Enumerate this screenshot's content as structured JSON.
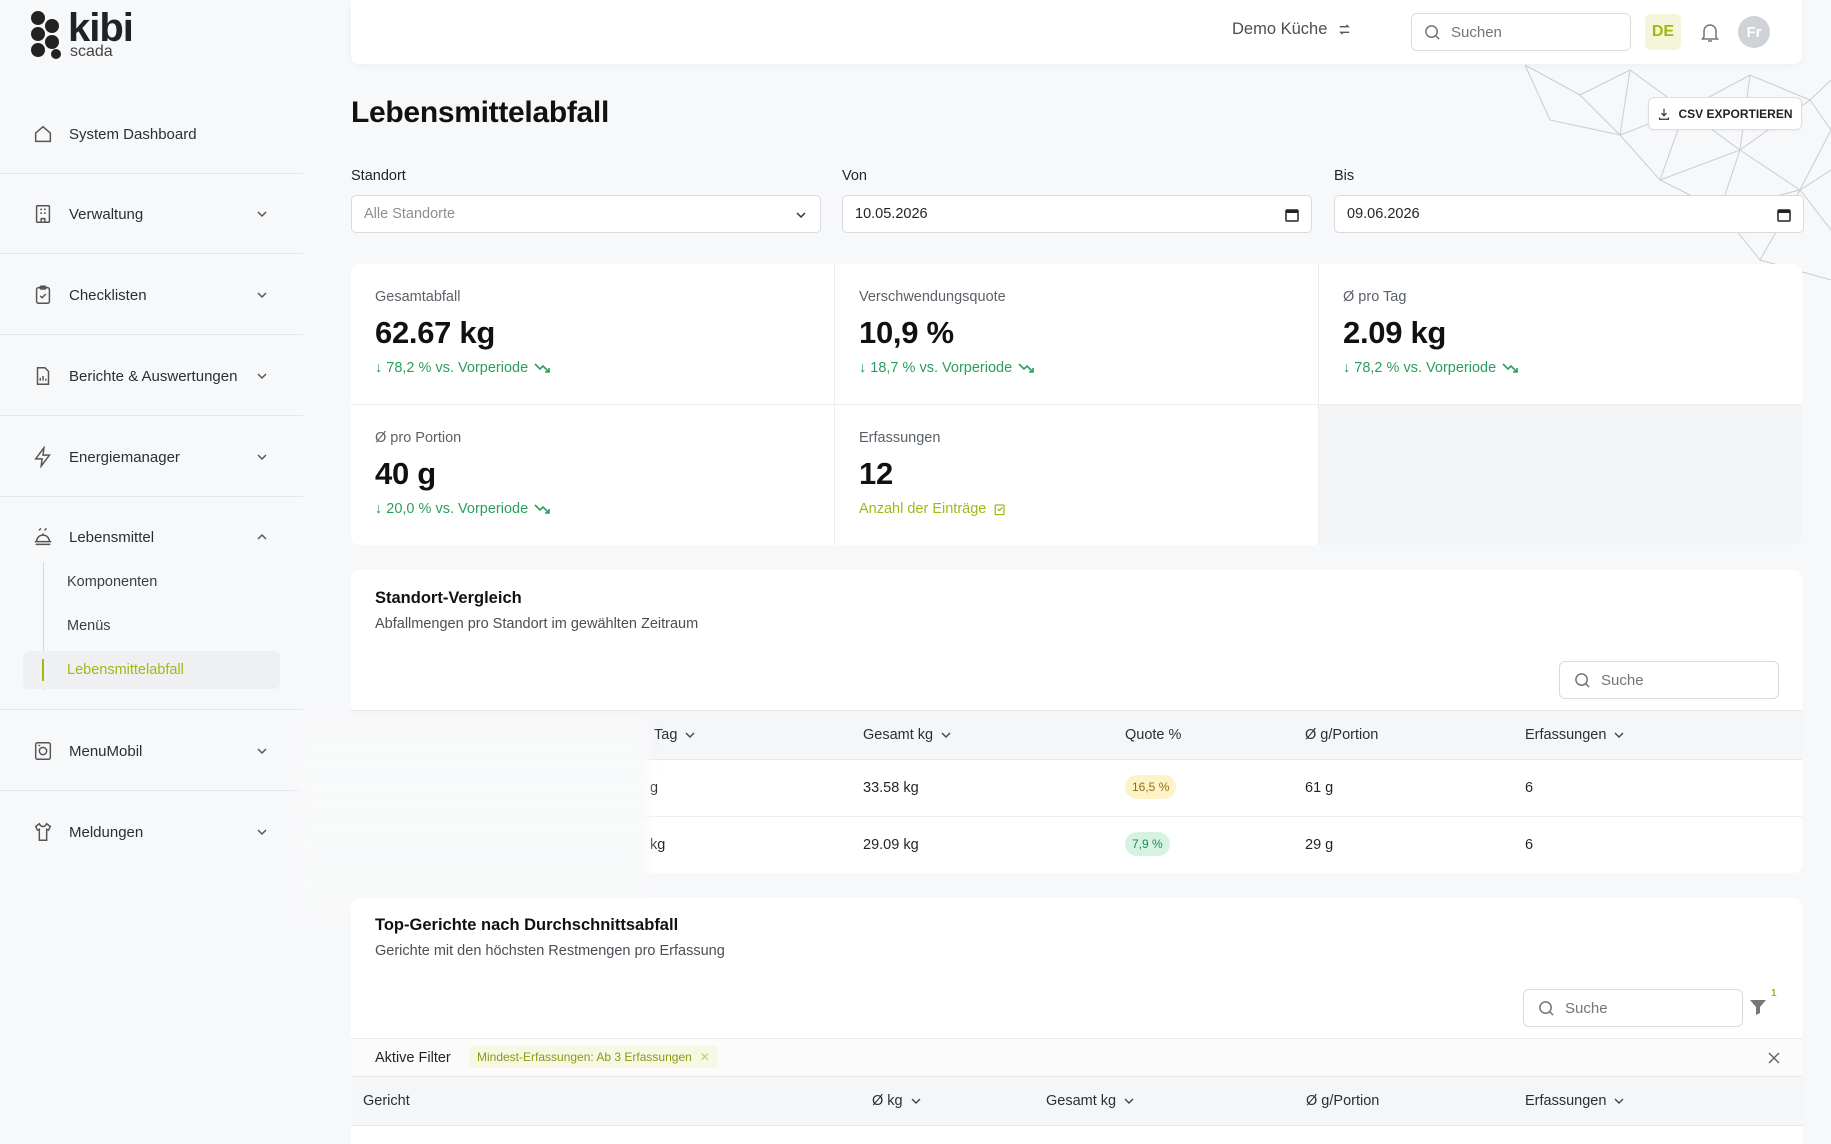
{
  "brand": {
    "name": "kibi",
    "sub": "scada",
    "accent": "#a4b814"
  },
  "sidebar": {
    "items": [
      {
        "label": "System Dashboard",
        "icon": "home-icon"
      },
      {
        "label": "Verwaltung",
        "icon": "building-icon"
      },
      {
        "label": "Checklisten",
        "icon": "clipboard-check-icon"
      },
      {
        "label": "Berichte & Auswertungen",
        "icon": "report-icon"
      },
      {
        "label": "Energiemanager",
        "icon": "bolt-icon"
      },
      {
        "label": "Lebensmittel",
        "icon": "food-tray-icon",
        "expanded": true
      },
      {
        "label": "MenuMobil",
        "icon": "mobile-cart-icon"
      },
      {
        "label": "Meldungen",
        "icon": "shirt-icon"
      }
    ],
    "sub_items": [
      {
        "label": "Komponenten"
      },
      {
        "label": "Menüs"
      },
      {
        "label": "Lebensmittelabfall",
        "active": true
      }
    ]
  },
  "topbar": {
    "location": "Demo Küche",
    "search_placeholder": "Suchen",
    "language": "DE",
    "avatar_initials": "Fr"
  },
  "page": {
    "title": "Lebensmittelabfall",
    "export_label": "CSV EXPORTIEREN"
  },
  "filters": {
    "location_label": "Standort",
    "location_value": "Alle Standorte",
    "from_label": "Von",
    "from_value": "10.05.2026",
    "to_label": "Bis",
    "to_value": "09.06.2026"
  },
  "kpis": [
    {
      "label": "Gesamtabfall",
      "value": "62.67 kg",
      "delta": "↓ 78,2 % vs. Vorperiode"
    },
    {
      "label": "Verschwendungsquote",
      "value": "10,9 %",
      "delta": "↓ 18,7 % vs. Vorperiode"
    },
    {
      "label": "Ø pro Tag",
      "value": "2.09 kg",
      "delta": "↓ 78,2 % vs. Vorperiode"
    },
    {
      "label": "Ø pro Portion",
      "value": "40 g",
      "delta": "↓ 20,0 % vs. Vorperiode"
    },
    {
      "label": "Erfassungen",
      "value": "12",
      "delta": "Anzahl der Einträge"
    }
  ],
  "comparison": {
    "title": "Standort-Vergleich",
    "subtitle": "Abfallmengen pro Standort im gewählten Zeitraum",
    "search_placeholder": "Suche",
    "columns": [
      "Tag",
      "Gesamt kg",
      "Quote %",
      "Ø g/Portion",
      "Erfassungen"
    ],
    "rows": [
      {
        "tag": "g",
        "gesamt": "33.58 kg",
        "quote": "16,5 %",
        "portion": "61 g",
        "erfassungen": "6"
      },
      {
        "tag": "kg",
        "gesamt": "29.09 kg",
        "quote": "7,9 %",
        "portion": "29 g",
        "erfassungen": "6"
      }
    ]
  },
  "top_dishes": {
    "title": "Top-Gerichte nach Durchschnittsabfall",
    "subtitle": "Gerichte mit den höchsten Restmengen pro Erfassung",
    "search_placeholder": "Suche",
    "filter_count": "1",
    "active_filters_label": "Aktive Filter",
    "chip": "Mindest-Erfassungen: Ab 3 Erfassungen",
    "columns": [
      "Gericht",
      "Ø kg",
      "Gesamt kg",
      "Ø g/Portion",
      "Erfassungen"
    ]
  }
}
